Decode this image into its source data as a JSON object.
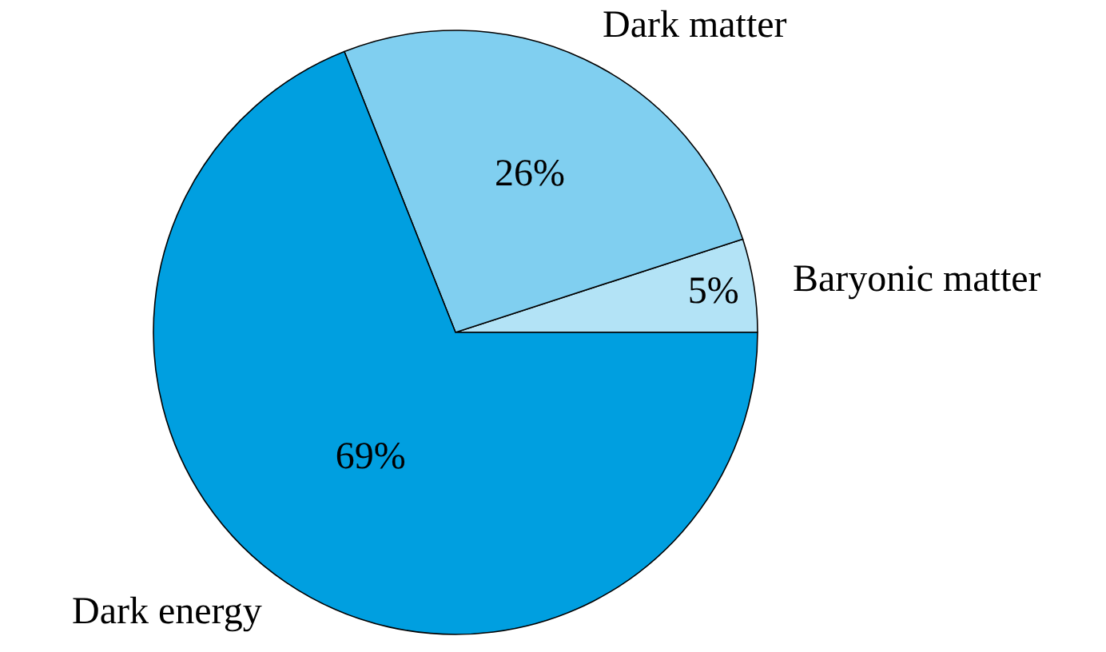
{
  "chart_data": {
    "type": "pie",
    "categories": [
      "Baryonic matter",
      "Dark matter",
      "Dark energy"
    ],
    "values": [
      5,
      26,
      69
    ],
    "colors": [
      "#b3e3f6",
      "#80cff0",
      "#009fe0"
    ],
    "value_labels": [
      "5%",
      "26%",
      "69%"
    ],
    "legend": false
  }
}
